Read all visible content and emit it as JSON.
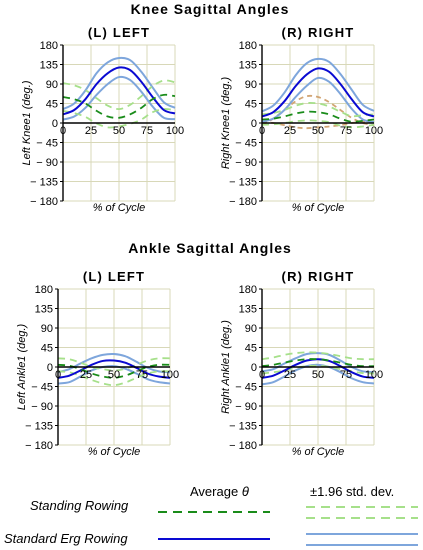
{
  "sections": [
    {
      "title": "Knee Sagittal Angles"
    },
    {
      "title": "Ankle Sagittal Angles"
    }
  ],
  "legend": {
    "average_header": "Average",
    "average_symbol": "θ",
    "std_header": "±1.96 std. dev.",
    "standing_label": "Standing Rowing",
    "erg_label": "Standard Erg Rowing"
  },
  "colors": {
    "standing_avg": "#1a8c1a",
    "standing_std": "#a6e08a",
    "erg_avg": "#0a0ad2",
    "erg_std": "#7ea6dc",
    "extra_dash": "#d2a574",
    "grid": "#d8d8b8"
  },
  "chart_data": [
    {
      "type": "line",
      "title": "(L) LEFT",
      "xlabel": "% of Cycle",
      "ylabel": "Left Knee1 (deg.)",
      "xlim": [
        0,
        100
      ],
      "ylim": [
        -180,
        180
      ],
      "xticks": [
        0,
        25,
        50,
        75,
        100
      ],
      "yticks": [
        180,
        135,
        90,
        45,
        0,
        -45,
        -90,
        -135,
        -180
      ],
      "grid": true,
      "x": [
        0,
        10,
        20,
        30,
        40,
        50,
        60,
        70,
        80,
        90,
        100
      ],
      "series": [
        {
          "name": "Standard Erg Rowing",
          "role": "average",
          "values": [
            20,
            30,
            55,
            90,
            115,
            128,
            122,
            95,
            60,
            30,
            22
          ]
        },
        {
          "name": "Standard Erg Rowing",
          "role": "upper",
          "values": [
            32,
            45,
            75,
            115,
            140,
            150,
            145,
            118,
            82,
            48,
            35
          ]
        },
        {
          "name": "Standard Erg Rowing",
          "role": "lower",
          "values": [
            8,
            15,
            35,
            65,
            90,
            106,
            99,
            72,
            38,
            12,
            9
          ]
        },
        {
          "name": "Standing Rowing",
          "role": "average",
          "values": [
            60,
            55,
            45,
            28,
            15,
            12,
            20,
            35,
            55,
            65,
            62
          ]
        },
        {
          "name": "Standing Rowing",
          "role": "upper",
          "values": [
            92,
            87,
            76,
            57,
            40,
            32,
            42,
            62,
            85,
            98,
            94
          ]
        },
        {
          "name": "Standing Rowing",
          "role": "lower",
          "values": [
            28,
            23,
            14,
            -1,
            -10,
            -8,
            -2,
            8,
            25,
            32,
            30
          ]
        }
      ]
    },
    {
      "type": "line",
      "title": "(R) RIGHT",
      "xlabel": "% of Cycle",
      "ylabel": "Right Knee1 (deg.)",
      "xlim": [
        0,
        100
      ],
      "ylim": [
        -180,
        180
      ],
      "xticks": [
        0,
        25,
        50,
        75,
        100
      ],
      "yticks": [
        180,
        135,
        90,
        45,
        0,
        -45,
        -90,
        -135,
        -180
      ],
      "grid": true,
      "x": [
        0,
        10,
        20,
        30,
        40,
        50,
        60,
        70,
        80,
        90,
        100
      ],
      "series": [
        {
          "name": "Standard Erg Rowing",
          "role": "average",
          "values": [
            15,
            25,
            50,
            85,
            112,
            126,
            118,
            90,
            55,
            25,
            15
          ]
        },
        {
          "name": "Standard Erg Rowing",
          "role": "upper",
          "values": [
            27,
            40,
            70,
            110,
            138,
            148,
            141,
            113,
            77,
            42,
            28
          ]
        },
        {
          "name": "Standard Erg Rowing",
          "role": "lower",
          "values": [
            3,
            10,
            30,
            60,
            86,
            104,
            95,
            67,
            33,
            8,
            2
          ]
        },
        {
          "name": "Standing Rowing",
          "role": "average",
          "values": [
            8,
            10,
            15,
            22,
            26,
            25,
            20,
            10,
            3,
            5,
            8
          ]
        },
        {
          "name": "Standing Rowing",
          "role": "upper",
          "values": [
            20,
            23,
            30,
            40,
            46,
            45,
            38,
            26,
            16,
            18,
            20
          ]
        },
        {
          "name": "Standing Rowing",
          "role": "lower",
          "values": [
            -4,
            -3,
            0,
            4,
            6,
            5,
            2,
            -6,
            -10,
            -8,
            -4
          ]
        },
        {
          "name": "",
          "role": "extra-upper",
          "values": [
            -5,
            10,
            30,
            50,
            62,
            60,
            48,
            30,
            12,
            0,
            -5
          ]
        },
        {
          "name": "",
          "role": "extra-lower",
          "values": [
            2,
            0,
            -5,
            -10,
            -12,
            -10,
            -8,
            -5,
            0,
            3,
            2
          ]
        }
      ]
    },
    {
      "type": "line",
      "title": "(L) LEFT",
      "xlabel": "% of Cycle",
      "ylabel": "Left Ankle1 (deg.)",
      "xlim": [
        0,
        100
      ],
      "ylim": [
        -180,
        180
      ],
      "xticks": [
        0,
        25,
        50,
        75,
        100
      ],
      "yticks": [
        180,
        135,
        90,
        45,
        0,
        -45,
        -90,
        -135,
        -180
      ],
      "grid": true,
      "x": [
        0,
        10,
        20,
        30,
        40,
        50,
        60,
        70,
        80,
        90,
        100
      ],
      "series": [
        {
          "name": "Standard Erg Rowing",
          "role": "average",
          "values": [
            -25,
            -20,
            -8,
            5,
            14,
            15,
            10,
            -2,
            -15,
            -22,
            -25
          ]
        },
        {
          "name": "Standard Erg Rowing",
          "role": "upper",
          "values": [
            -12,
            -5,
            8,
            20,
            28,
            30,
            25,
            12,
            -2,
            -10,
            -12
          ]
        },
        {
          "name": "Standard Erg Rowing",
          "role": "lower",
          "values": [
            -38,
            -35,
            -22,
            -8,
            0,
            2,
            -4,
            -15,
            -28,
            -35,
            -38
          ]
        },
        {
          "name": "Standing Rowing",
          "role": "average",
          "values": [
            5,
            3,
            -5,
            -15,
            -22,
            -25,
            -20,
            -10,
            0,
            5,
            5
          ]
        },
        {
          "name": "Standing Rowing",
          "role": "upper",
          "values": [
            20,
            18,
            10,
            0,
            -5,
            -8,
            -4,
            5,
            15,
            20,
            20
          ]
        },
        {
          "name": "Standing Rowing",
          "role": "lower",
          "values": [
            -10,
            -12,
            -20,
            -30,
            -38,
            -42,
            -36,
            -25,
            -15,
            -10,
            -10
          ]
        }
      ]
    },
    {
      "type": "line",
      "title": "(R) RIGHT",
      "xlabel": "% of Cycle",
      "ylabel": "Right Ankle1 (deg.)",
      "xlim": [
        0,
        100
      ],
      "ylim": [
        -180,
        180
      ],
      "xticks": [
        0,
        25,
        50,
        75,
        100
      ],
      "yticks": [
        180,
        135,
        90,
        45,
        0,
        -45,
        -90,
        -135,
        -180
      ],
      "grid": true,
      "x": [
        0,
        10,
        20,
        30,
        40,
        50,
        60,
        70,
        80,
        90,
        100
      ],
      "series": [
        {
          "name": "Standard Erg Rowing",
          "role": "average",
          "values": [
            -25,
            -20,
            -8,
            5,
            15,
            18,
            14,
            2,
            -12,
            -22,
            -25
          ]
        },
        {
          "name": "Standard Erg Rowing",
          "role": "upper",
          "values": [
            -10,
            -5,
            8,
            20,
            30,
            32,
            28,
            15,
            0,
            -10,
            -12
          ]
        },
        {
          "name": "Standard Erg Rowing",
          "role": "lower",
          "values": [
            -40,
            -35,
            -22,
            -8,
            2,
            5,
            0,
            -12,
            -26,
            -35,
            -38
          ]
        },
        {
          "name": "Standing Rowing",
          "role": "average",
          "values": [
            2,
            5,
            10,
            15,
            18,
            18,
            15,
            10,
            5,
            2,
            2
          ]
        },
        {
          "name": "Standing Rowing",
          "role": "upper",
          "values": [
            18,
            22,
            28,
            32,
            34,
            33,
            30,
            25,
            20,
            18,
            18
          ]
        },
        {
          "name": "Standing Rowing",
          "role": "lower",
          "values": [
            -15,
            -12,
            -8,
            -2,
            2,
            3,
            0,
            -5,
            -10,
            -14,
            -15
          ]
        }
      ]
    }
  ]
}
